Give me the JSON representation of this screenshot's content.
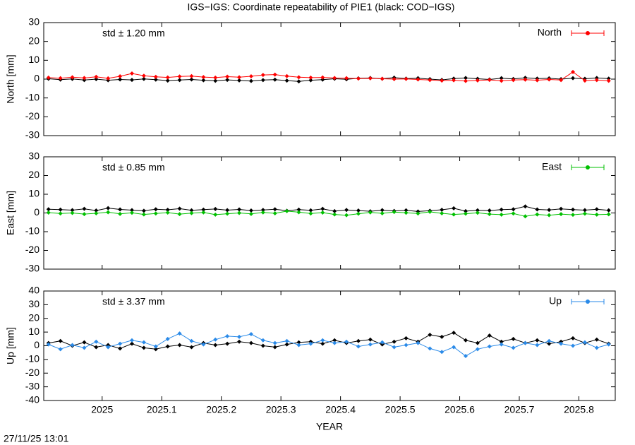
{
  "title": "IGS−IGS: Coordinate repeatability of PIE1 (black: COD−IGS)",
  "timestamp": "27/11/25 13:01",
  "chart_data": [
    {
      "type": "line",
      "ylabel": "North [mm]",
      "annotation": "std ± 1.20 mm",
      "legend": "upper right",
      "xlim": [
        2024.902,
        2025.861
      ],
      "xticks": [
        2025,
        2025.1,
        2025.2,
        2025.3,
        2025.4,
        2025.5,
        2025.6,
        2025.7,
        2025.8
      ],
      "ylim": [
        -30,
        30
      ],
      "yticks": [
        -30,
        -20,
        -10,
        0,
        10,
        20,
        30
      ],
      "x": [
        2024.91,
        2024.93,
        2024.95,
        2024.97,
        2024.99,
        2025.01,
        2025.03,
        2025.05,
        2025.07,
        2025.09,
        2025.11,
        2025.13,
        2025.15,
        2025.17,
        2025.19,
        2025.21,
        2025.23,
        2025.25,
        2025.27,
        2025.29,
        2025.31,
        2025.33,
        2025.35,
        2025.37,
        2025.39,
        2025.41,
        2025.43,
        2025.45,
        2025.47,
        2025.49,
        2025.51,
        2025.53,
        2025.55,
        2025.57,
        2025.59,
        2025.61,
        2025.63,
        2025.65,
        2025.67,
        2025.69,
        2025.71,
        2025.73,
        2025.75,
        2025.77,
        2025.79,
        2025.81,
        2025.83,
        2025.85
      ],
      "series": [
        {
          "color": "#000000",
          "values": [
            0.2,
            -0.3,
            0.1,
            -0.5,
            0.0,
            -0.6,
            -0.2,
            -0.4,
            0.1,
            -0.3,
            -0.8,
            -0.5,
            -0.2,
            -0.6,
            -0.9,
            -0.4,
            -0.7,
            -1.0,
            -0.5,
            -0.3,
            -0.8,
            -1.2,
            -0.6,
            -0.3,
            0.2,
            -0.1,
            0.4,
            0.6,
            0.2,
            0.8,
            0.3,
            0.5,
            0.0,
            -0.4,
            0.3,
            0.6,
            0.2,
            -0.2,
            0.5,
            0.1,
            0.7,
            0.3,
            0.4,
            0.0,
            0.5,
            0.2,
            0.6,
            0.3
          ]
        },
        {
          "name": "North",
          "color": "#ff0000",
          "values": [
            0.8,
            0.5,
            1.0,
            0.6,
            1.2,
            0.4,
            1.5,
            3.0,
            1.8,
            1.2,
            0.9,
            1.4,
            1.6,
            1.1,
            0.8,
            1.3,
            1.0,
            1.5,
            2.2,
            2.4,
            1.6,
            1.0,
            0.8,
            0.9,
            0.6,
            0.5,
            0.3,
            0.4,
            0.2,
            0.0,
            0.1,
            -0.2,
            -0.5,
            -0.8,
            -0.6,
            -1.0,
            -0.7,
            -0.4,
            -0.9,
            -0.5,
            -0.3,
            -0.6,
            -0.2,
            -0.5,
            3.8,
            -0.8,
            -0.5,
            -0.9
          ]
        }
      ]
    },
    {
      "type": "line",
      "ylabel": "East [mm]",
      "annotation": "std ± 0.85 mm",
      "legend": "upper right",
      "xlim": [
        2024.902,
        2025.861
      ],
      "xticks": [
        2025,
        2025.1,
        2025.2,
        2025.3,
        2025.4,
        2025.5,
        2025.6,
        2025.7,
        2025.8
      ],
      "ylim": [
        -30,
        30
      ],
      "yticks": [
        -30,
        -20,
        -10,
        0,
        10,
        20,
        30
      ],
      "x": [
        2024.91,
        2024.93,
        2024.95,
        2024.97,
        2024.99,
        2025.01,
        2025.03,
        2025.05,
        2025.07,
        2025.09,
        2025.11,
        2025.13,
        2025.15,
        2025.17,
        2025.19,
        2025.21,
        2025.23,
        2025.25,
        2025.27,
        2025.29,
        2025.31,
        2025.33,
        2025.35,
        2025.37,
        2025.39,
        2025.41,
        2025.43,
        2025.45,
        2025.47,
        2025.49,
        2025.51,
        2025.53,
        2025.55,
        2025.57,
        2025.59,
        2025.61,
        2025.63,
        2025.65,
        2025.67,
        2025.69,
        2025.71,
        2025.73,
        2025.75,
        2025.77,
        2025.79,
        2025.81,
        2025.83,
        2025.85
      ],
      "series": [
        {
          "color": "#000000",
          "values": [
            2.0,
            1.8,
            1.5,
            2.2,
            1.3,
            2.6,
            1.9,
            1.5,
            1.2,
            2.0,
            1.7,
            2.3,
            1.4,
            1.8,
            2.1,
            1.5,
            1.9,
            1.3,
            1.6,
            2.0,
            1.2,
            1.8,
            1.4,
            2.2,
            1.0,
            1.6,
            1.3,
            0.9,
            1.5,
            1.1,
            1.4,
            0.8,
            1.2,
            1.7,
            2.5,
            1.0,
            1.4,
            1.3,
            1.8,
            2.0,
            3.5,
            1.9,
            1.6,
            2.2,
            1.8,
            1.5,
            2.0,
            1.4
          ]
        },
        {
          "name": "East",
          "color": "#00c000",
          "values": [
            0.2,
            -0.3,
            0.0,
            -0.6,
            -0.2,
            0.4,
            -0.5,
            0.1,
            -0.8,
            -0.3,
            0.2,
            -0.6,
            -0.1,
            0.3,
            -0.9,
            -0.4,
            0.0,
            -0.5,
            0.3,
            -0.2,
            1.0,
            0.4,
            -0.3,
            0.2,
            -0.8,
            -1.2,
            -0.4,
            0.3,
            -0.2,
            0.5,
            0.1,
            -0.3,
            0.6,
            -0.2,
            -0.8,
            -0.4,
            0.1,
            -0.6,
            -0.9,
            -0.3,
            -1.8,
            -0.8,
            -1.2,
            -0.6,
            -1.0,
            -0.4,
            -0.9,
            -0.7
          ]
        }
      ]
    },
    {
      "type": "line",
      "ylabel": "Up [mm]",
      "xlabel": "YEAR",
      "annotation": "std ± 3.37 mm",
      "legend": "upper right",
      "xlim": [
        2024.902,
        2025.861
      ],
      "xticks": [
        2025,
        2025.1,
        2025.2,
        2025.3,
        2025.4,
        2025.5,
        2025.6,
        2025.7,
        2025.8
      ],
      "ylim": [
        -40,
        40
      ],
      "yticks": [
        -40,
        -30,
        -20,
        -10,
        0,
        10,
        20,
        30,
        40
      ],
      "x": [
        2024.91,
        2024.93,
        2024.95,
        2024.97,
        2024.99,
        2025.01,
        2025.03,
        2025.05,
        2025.07,
        2025.09,
        2025.11,
        2025.13,
        2025.15,
        2025.17,
        2025.19,
        2025.21,
        2025.23,
        2025.25,
        2025.27,
        2025.29,
        2025.31,
        2025.33,
        2025.35,
        2025.37,
        2025.39,
        2025.41,
        2025.43,
        2025.45,
        2025.47,
        2025.49,
        2025.51,
        2025.53,
        2025.55,
        2025.57,
        2025.59,
        2025.61,
        2025.63,
        2025.65,
        2025.67,
        2025.69,
        2025.71,
        2025.73,
        2025.75,
        2025.77,
        2025.79,
        2025.81,
        2025.83,
        2025.85
      ],
      "series": [
        {
          "color": "#000000",
          "values": [
            2.0,
            3.5,
            0.0,
            2.5,
            -1.0,
            0.5,
            -2.0,
            1.5,
            -1.5,
            -2.5,
            -0.5,
            0.5,
            -1.0,
            2.0,
            0.5,
            1.5,
            3.0,
            2.0,
            0.0,
            -1.0,
            1.0,
            2.5,
            3.0,
            1.5,
            4.0,
            2.0,
            3.5,
            4.5,
            1.0,
            3.0,
            5.5,
            3.0,
            8.0,
            6.5,
            9.5,
            4.0,
            2.0,
            7.5,
            3.0,
            5.0,
            2.0,
            4.0,
            1.5,
            3.0,
            5.5,
            2.0,
            4.5,
            1.5
          ]
        },
        {
          "name": "Up",
          "color": "#2a8ae8",
          "values": [
            1.0,
            -2.5,
            0.5,
            -1.5,
            3.0,
            -1.0,
            1.5,
            4.0,
            2.5,
            -0.5,
            5.0,
            9.0,
            3.5,
            1.0,
            4.5,
            7.0,
            6.5,
            8.5,
            4.0,
            2.0,
            3.5,
            0.5,
            1.5,
            4.0,
            2.0,
            3.0,
            -0.5,
            1.0,
            2.5,
            -1.0,
            0.5,
            2.0,
            -2.0,
            -4.5,
            -1.0,
            -7.5,
            -2.5,
            -0.5,
            1.0,
            -1.5,
            2.0,
            0.5,
            3.5,
            1.5,
            0.0,
            2.5,
            -1.5,
            1.0
          ]
        }
      ]
    }
  ]
}
